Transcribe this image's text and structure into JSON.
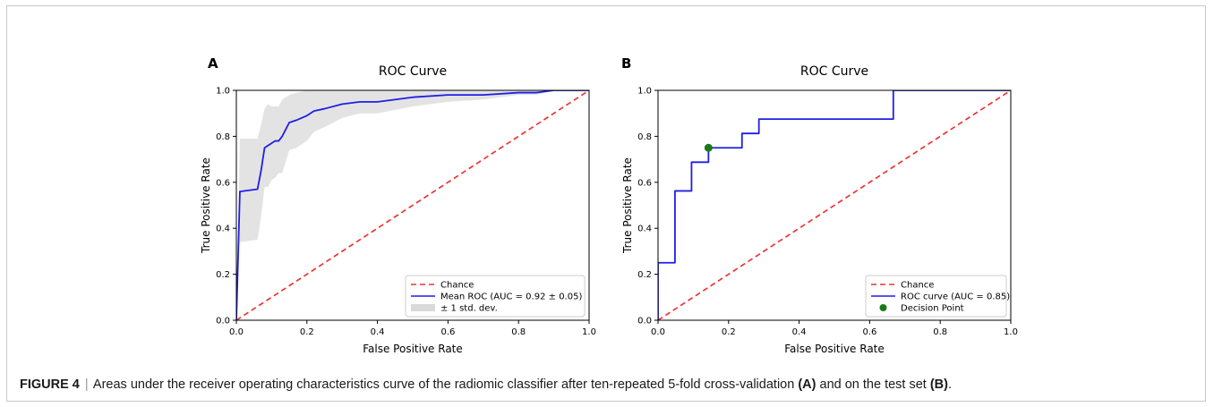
{
  "caption": {
    "prefix": "FIGURE 4",
    "separator": "|",
    "text_1": "Areas under the receiver operating characteristics curve of the radiomic classifier after ten-repeated 5-fold cross-validation",
    "ref_a": "(A)",
    "text_2": "and on the test set",
    "ref_b": "(B)",
    "text_3": "."
  },
  "colors": {
    "roc": "#1f1fe6",
    "chance": "#ee3333",
    "band": "#d9d9d9",
    "decision": "#1a7a1a"
  },
  "chart_data": [
    {
      "type": "line",
      "panel_label": "A",
      "title": "ROC Curve",
      "xlabel": "False Positive Rate",
      "ylabel": "True Positive Rate",
      "xlim": [
        0,
        1
      ],
      "ylim": [
        0,
        1
      ],
      "ticks": [
        "0.0",
        "0.2",
        "0.4",
        "0.6",
        "0.8",
        "1.0"
      ],
      "grid": false,
      "legend_position": "lower-right",
      "legend": [
        "Chance",
        "Mean ROC (AUC = 0.92 ± 0.05)",
        "± 1 std. dev."
      ],
      "series": [
        {
          "name": "Chance",
          "style": "dashed",
          "x": [
            0,
            1
          ],
          "y": [
            0,
            1
          ]
        },
        {
          "name": "Mean ROC (AUC = 0.92 ± 0.05)",
          "x": [
            0,
            0.01,
            0.06,
            0.07,
            0.08,
            0.09,
            0.1,
            0.11,
            0.12,
            0.13,
            0.14,
            0.15,
            0.17,
            0.2,
            0.22,
            0.25,
            0.3,
            0.35,
            0.4,
            0.5,
            0.6,
            0.7,
            0.8,
            0.85,
            0.9,
            1.0
          ],
          "y": [
            0,
            0.56,
            0.57,
            0.65,
            0.75,
            0.76,
            0.77,
            0.78,
            0.78,
            0.8,
            0.83,
            0.86,
            0.87,
            0.89,
            0.91,
            0.92,
            0.94,
            0.95,
            0.95,
            0.97,
            0.98,
            0.98,
            0.99,
            0.99,
            1.0,
            1.0
          ]
        },
        {
          "name": "± 1 std. dev.",
          "style": "band",
          "x": [
            0,
            0.01,
            0.06,
            0.07,
            0.08,
            0.09,
            0.1,
            0.11,
            0.12,
            0.13,
            0.14,
            0.15,
            0.17,
            0.2,
            0.22,
            0.25,
            0.3,
            0.35,
            0.4,
            0.5,
            0.6,
            0.7,
            0.8,
            0.85,
            0.9,
            1.0
          ],
          "y_upper": [
            0,
            0.79,
            0.79,
            0.85,
            0.92,
            0.94,
            0.93,
            0.93,
            0.93,
            0.96,
            0.97,
            0.98,
            0.99,
            1.0,
            1.0,
            1.0,
            1.0,
            1.0,
            1.0,
            1.0,
            1.0,
            1.0,
            1.0,
            1.0,
            1.0,
            1.0
          ],
          "y_lower": [
            0,
            0.34,
            0.35,
            0.45,
            0.58,
            0.58,
            0.61,
            0.62,
            0.64,
            0.64,
            0.69,
            0.74,
            0.75,
            0.78,
            0.82,
            0.84,
            0.88,
            0.9,
            0.9,
            0.93,
            0.95,
            0.96,
            0.98,
            0.98,
            1.0,
            1.0
          ]
        }
      ]
    },
    {
      "type": "line",
      "panel_label": "B",
      "title": "ROC Curve",
      "xlabel": "False Positive Rate",
      "ylabel": "True Positive Rate",
      "xlim": [
        0,
        1
      ],
      "ylim": [
        0,
        1
      ],
      "ticks": [
        "0.0",
        "0.2",
        "0.4",
        "0.6",
        "0.8",
        "1.0"
      ],
      "grid": false,
      "legend_position": "lower-right",
      "legend": [
        "Chance",
        "ROC curve (AUC = 0.85)",
        "Decision Point"
      ],
      "series": [
        {
          "name": "Chance",
          "style": "dashed",
          "x": [
            0,
            1
          ],
          "y": [
            0,
            1
          ]
        },
        {
          "name": "ROC curve (AUC = 0.85)",
          "style": "step",
          "x": [
            0,
            0,
            0.048,
            0.048,
            0.095,
            0.095,
            0.143,
            0.143,
            0.238,
            0.238,
            0.286,
            0.286,
            0.667,
            0.667,
            1.0
          ],
          "y": [
            0,
            0.25,
            0.25,
            0.5625,
            0.5625,
            0.6875,
            0.6875,
            0.75,
            0.75,
            0.8125,
            0.8125,
            0.875,
            0.875,
            1.0,
            1.0
          ]
        },
        {
          "name": "Decision Point",
          "style": "marker",
          "x": [
            0.143
          ],
          "y": [
            0.75
          ]
        }
      ]
    }
  ]
}
